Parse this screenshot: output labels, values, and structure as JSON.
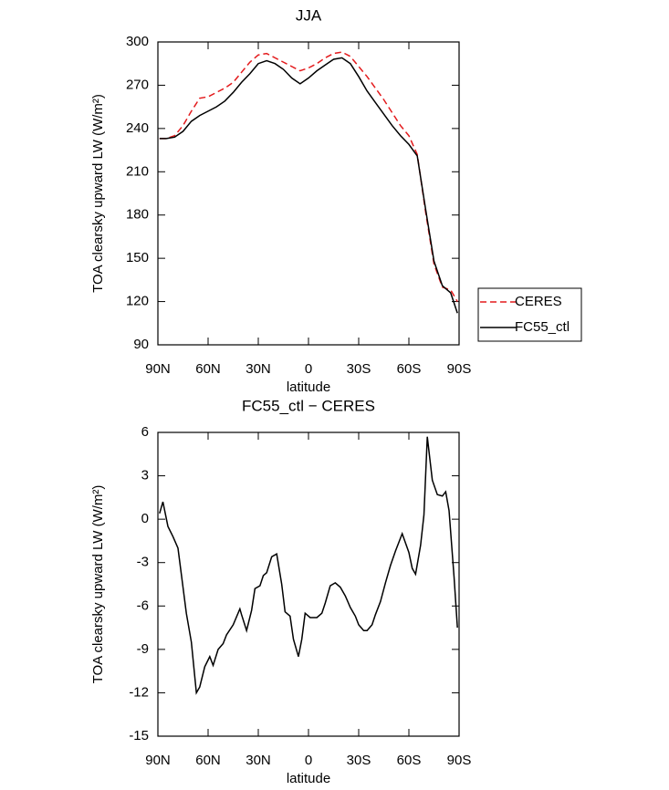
{
  "chart_data": [
    {
      "type": "line",
      "title": "JJA",
      "xlabel": "latitude",
      "ylabel": "TOA clearsky upward LW (W/m²)",
      "x": [
        89,
        85,
        80,
        75,
        70,
        65,
        60,
        55,
        50,
        45,
        40,
        35,
        30,
        25,
        20,
        15,
        10,
        5,
        0,
        -5,
        -10,
        -15,
        -20,
        -25,
        -30,
        -35,
        -40,
        -45,
        -50,
        -55,
        -60,
        -65,
        -70,
        -75,
        -80,
        -85,
        -89
      ],
      "series": [
        {
          "name": "CERES",
          "color": "#e31a1c",
          "dashed": true,
          "values": [
            233,
            233,
            235,
            242,
            252,
            261,
            262,
            265,
            268,
            272,
            279,
            286,
            291,
            292,
            289,
            286,
            283,
            280,
            282,
            285,
            289,
            292,
            293,
            290,
            283,
            276,
            268,
            260,
            251,
            242,
            235,
            222,
            182,
            146,
            130,
            128,
            120
          ]
        },
        {
          "name": "FC55_ctl",
          "color": "#000000",
          "values": [
            233,
            233,
            234,
            238,
            245,
            249,
            252,
            255,
            259,
            265,
            272,
            278,
            285,
            287,
            285,
            281,
            275,
            271,
            275,
            280,
            284,
            288,
            289,
            285,
            276,
            266,
            258,
            250,
            242,
            235,
            229,
            221,
            184,
            148,
            131,
            126,
            112
          ]
        }
      ],
      "xlim": [
        90,
        -90
      ],
      "xticks": [
        {
          "value": 90,
          "label": "90N"
        },
        {
          "value": 60,
          "label": "60N"
        },
        {
          "value": 30,
          "label": "30N"
        },
        0,
        {
          "value": -30,
          "label": "30S"
        },
        {
          "value": -60,
          "label": "60S"
        },
        {
          "value": -90,
          "label": "90S"
        }
      ],
      "ylim": [
        90,
        300
      ],
      "yticks": [
        90,
        120,
        150,
        180,
        210,
        240,
        270,
        300
      ],
      "legend": "right"
    },
    {
      "type": "line",
      "title": "FC55_ctl − CERES",
      "xlabel": "latitude",
      "ylabel": "TOA clearsky upward LW (W/m²)",
      "x": [
        89,
        87,
        84,
        81,
        78,
        76,
        73,
        70,
        67,
        65,
        62,
        59,
        57,
        54,
        51,
        49,
        45,
        41,
        40,
        37,
        34,
        32,
        29,
        27,
        25,
        22,
        19,
        16,
        14,
        11,
        9,
        6,
        4,
        2,
        -1,
        -5,
        -8,
        -10,
        -13,
        -16,
        -19,
        -22,
        -25,
        -28,
        -30,
        -33,
        -35,
        -38,
        -40,
        -43,
        -46,
        -49,
        -52,
        -56,
        -60,
        -62,
        -64,
        -67,
        -69,
        -71,
        -74,
        -77,
        -80,
        -82,
        -84,
        -87,
        -89
      ],
      "values": [
        0.4,
        1.2,
        -0.5,
        -1.2,
        -2,
        -3.8,
        -6.5,
        -8.5,
        -12,
        -11.6,
        -10.2,
        -9.5,
        -10.1,
        -9,
        -8.6,
        -8,
        -7.3,
        -6.2,
        -6.6,
        -7.7,
        -6.3,
        -4.8,
        -4.6,
        -3.9,
        -3.7,
        -2.6,
        -2.4,
        -4.5,
        -6.4,
        -6.7,
        -8.3,
        -9.5,
        -8.3,
        -6.5,
        -6.8,
        -6.8,
        -6.5,
        -5.8,
        -4.6,
        -4.4,
        -4.7,
        -5.3,
        -6.1,
        -6.7,
        -7.3,
        -7.7,
        -7.7,
        -7.3,
        -6.6,
        -5.7,
        -4.4,
        -3.2,
        -2.2,
        -1,
        -2.3,
        -3.4,
        -3.8,
        -1.8,
        0.3,
        5.7,
        2.7,
        1.7,
        1.6,
        1.9,
        0.6,
        -4,
        -7.5
      ],
      "color": "#000000",
      "xlim": [
        90,
        -90
      ],
      "xticks": [
        {
          "value": 90,
          "label": "90N"
        },
        {
          "value": 60,
          "label": "60N"
        },
        {
          "value": 30,
          "label": "30N"
        },
        0,
        {
          "value": -30,
          "label": "30S"
        },
        {
          "value": -60,
          "label": "60S"
        },
        {
          "value": -90,
          "label": "90S"
        }
      ],
      "ylim": [
        -15,
        6
      ],
      "yticks": [
        -15,
        -12,
        -9,
        -6,
        -3,
        0,
        3,
        6
      ]
    }
  ]
}
